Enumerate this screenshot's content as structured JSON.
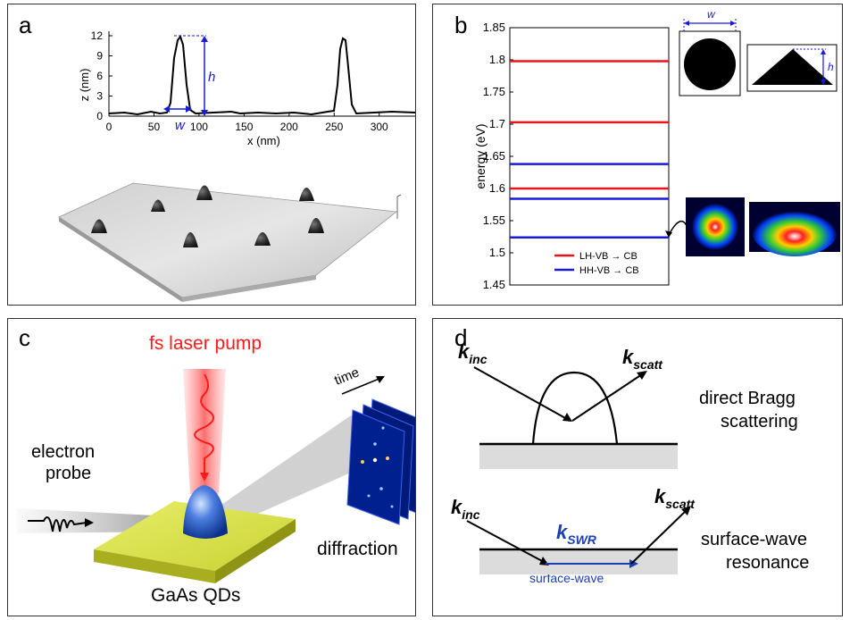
{
  "panels": {
    "a": {
      "label": "a",
      "profile": {
        "xlabel": "x (nm)",
        "ylabel": "z (nm)",
        "xticks": [
          "0",
          "50",
          "100",
          "150",
          "200",
          "250",
          "300"
        ],
        "yticks": [
          "0",
          "3",
          "6",
          "9",
          "12"
        ],
        "h_label": "h",
        "w_label": "w"
      }
    },
    "b": {
      "label": "b",
      "ylabel": "energy (eV)",
      "yticks": [
        "1.85",
        "1.8",
        "1.75",
        "1.7",
        "1.65",
        "1.6",
        "1.55",
        "1.5",
        "1.45"
      ],
      "legend_lh": "LH-VB → CB",
      "legend_hh": "HH-VB → CB",
      "w_label": "w",
      "h_label": "h",
      "colors": {
        "lh": "#e8161b",
        "hh": "#1a1adf"
      }
    },
    "c": {
      "label": "c",
      "laser_label": "fs laser pump",
      "probe_label_1": "electron",
      "probe_label_2": "probe",
      "time_label": "time",
      "diffraction_label": "diffraction",
      "sample_label": "GaAs QDs"
    },
    "d": {
      "label": "d",
      "k_label": "k",
      "sub_inc": "inc",
      "sub_scatt": "scatt",
      "sub_swr": "SWR",
      "bragg_label_1": "direct Bragg",
      "bragg_label_2": "scattering",
      "resonance_label_1": "surface-wave",
      "resonance_label_2": "resonance",
      "surface_wave_label": "surface-wave"
    }
  },
  "chart_data": {
    "type": "line",
    "ylabel": "energy (eV)",
    "ylim": [
      1.45,
      1.85
    ],
    "series": [
      {
        "name": "LH-VB → CB",
        "color": "#e8161b",
        "values": [
          1.798,
          1.703,
          1.6
        ]
      },
      {
        "name": "HH-VB → CB",
        "color": "#1a1adf",
        "values": [
          1.638,
          1.584,
          1.524
        ]
      }
    ]
  }
}
